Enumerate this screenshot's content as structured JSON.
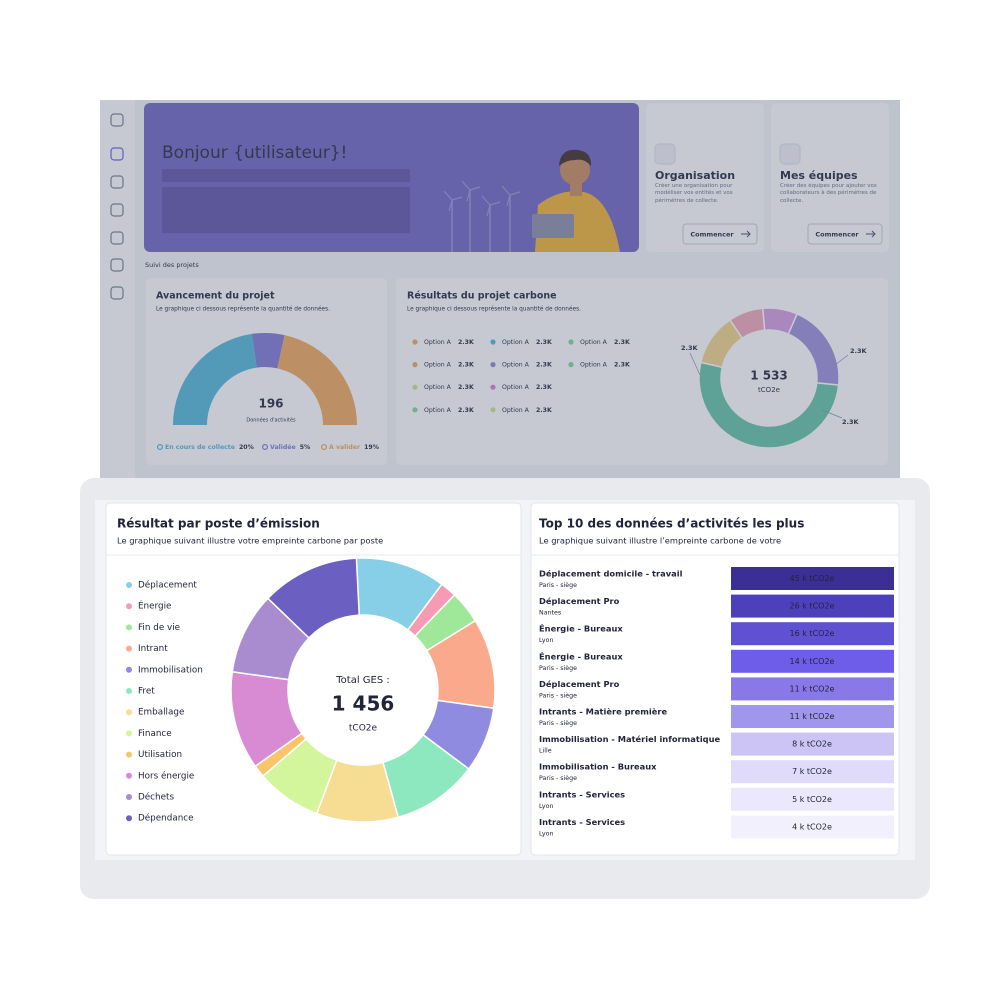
{
  "background_dashboard": {
    "greeting": "Bonjour {utilisateur}!",
    "section_label": "Suivi des projets",
    "cards": [
      {
        "title": "Organisation",
        "description": "Créer une organisation pour modéliser vos entités et vos périmètres de collecte.",
        "button": "Commencer"
      },
      {
        "title": "Mes équipes",
        "description": "Créer des équipes pour ajouter vos collaborateurs à des périmètres de collecte.",
        "button": "Commencer"
      }
    ],
    "progress": {
      "title": "Avancement du projet",
      "subtitle": "Le graphique ci dessous représente la quantité de données.",
      "total": 196,
      "total_label": "Données d'activités",
      "items": [
        {
          "name": "En cours de collecte",
          "value": 20,
          "label": "20%",
          "color": "#4fb8d8"
        },
        {
          "name": "Validée",
          "value": 5,
          "label": "5%",
          "color": "#7f78d6"
        },
        {
          "name": "A valider",
          "value": 19,
          "label": "19%",
          "color": "#f0a85a"
        }
      ]
    },
    "carbon_results": {
      "title": "Résultats du projet carbone",
      "subtitle": "Le graphique ci dessous représente la quantité de données.",
      "options": [
        {
          "name": "Option A",
          "value": "2.3K",
          "color": "#f0a85a"
        },
        {
          "name": "Option A",
          "value": "2.3K",
          "color": "#f0a85a"
        },
        {
          "name": "Option A",
          "value": "2.3K",
          "color": "#c6e88a"
        },
        {
          "name": "Option A",
          "value": "2.3K",
          "color": "#7fd89a"
        },
        {
          "name": "Option A",
          "value": "2.3K",
          "color": "#4fb8d8"
        },
        {
          "name": "Option A",
          "value": "2.3K",
          "color": "#8f86d8"
        },
        {
          "name": "Option A",
          "value": "2.3K",
          "color": "#e07ad0"
        },
        {
          "name": "Option A",
          "value": "2.3K",
          "color": "#c6e88a"
        },
        {
          "name": "Option A",
          "value": "2.3K",
          "color": "#7fd89a"
        },
        {
          "name": "Option A",
          "value": "2.3K",
          "color": "#7fd89a"
        }
      ],
      "total": "1 533",
      "unit": "tCO2e",
      "callouts": [
        "2.3K",
        "2.3K",
        "2.3K"
      ],
      "segments": {
        "values": [
          52,
          12,
          8,
          8,
          20
        ],
        "colors": [
          "#62c4a6",
          "#f3d488",
          "#f2a7b8",
          "#d59be0",
          "#9b8fd8"
        ]
      }
    }
  },
  "emissions_by_post": {
    "title": "Résultat par poste d’émission",
    "subtitle": "Le graphique suivant illustre votre empreinte carbone par poste",
    "total_label": "Total GES :",
    "total": "1 456",
    "unit": "tCO2e",
    "categories": [
      "Déplacement",
      "Énergie",
      "Fin de vie",
      "Intrant",
      "Immobilisation",
      "Fret",
      "Emballage",
      "Finance",
      "Utilisation",
      "Hors énergie",
      "Déchets",
      "Dépendance"
    ],
    "colors": [
      "#86cfe6",
      "#f79bb4",
      "#9fe89a",
      "#fba98d",
      "#8f8be0",
      "#8de8c0",
      "#f7dc93",
      "#d3f59b",
      "#f9c56b",
      "#d88ad2",
      "#a98ccf",
      "#6b5fc2"
    ],
    "values": [
      11,
      2,
      4,
      11,
      8,
      10.5,
      10,
      8,
      1.5,
      12,
      10,
      12
    ]
  },
  "top_activities": {
    "title": "Top 10 des données d’activités les plus",
    "subtitle": "Le graphique suivant illustre l’empreinte carbone de votre",
    "rows": [
      {
        "name": "Déplacement domicile - travail",
        "location": "Paris - siège",
        "value": 45,
        "value_label": "45 k tCO2e",
        "color": "#3b2e95"
      },
      {
        "name": "Déplacement Pro",
        "location": "Nantes",
        "value": 26,
        "value_label": "26 k tCO2e",
        "color": "#4d40bb"
      },
      {
        "name": "Énergie - Bureaux",
        "location": "Lyon",
        "value": 16,
        "value_label": "16 k tCO2e",
        "color": "#5f52d2"
      },
      {
        "name": "Énergie - Bureaux",
        "location": "Paris - siège",
        "value": 14,
        "value_label": "14 k tCO2e",
        "color": "#6d5de8"
      },
      {
        "name": "Déplacement Pro",
        "location": "Paris - siège",
        "value": 11,
        "value_label": "11 k tCO2e",
        "color": "#8878e8"
      },
      {
        "name": "Intrants - Matière première",
        "location": "Paris - siège",
        "value": 11,
        "value_label": "11 k tCO2e",
        "color": "#a096ec"
      },
      {
        "name": "Immobilisation - Matériel informatique",
        "location": "Lille",
        "value": 8,
        "value_label": "8 k tCO2e",
        "color": "#cbc4f4"
      },
      {
        "name": "Immobilisation - Bureaux",
        "location": "Paris - siège",
        "value": 7,
        "value_label": "7 k tCO2e",
        "color": "#e0dbfa"
      },
      {
        "name": "Intrants - Services",
        "location": "Lyon",
        "value": 5,
        "value_label": "5 k tCO2e",
        "color": "#ebe8fc"
      },
      {
        "name": "Intrants - Services",
        "location": "Lyon",
        "value": 4,
        "value_label": "4 k tCO2e",
        "color": "#f2f0fd"
      }
    ]
  }
}
